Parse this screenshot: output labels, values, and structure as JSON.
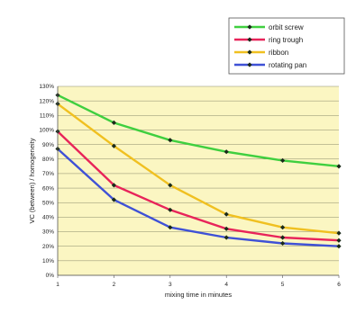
{
  "chart_data": {
    "type": "line",
    "title": "",
    "xlabel": "mixing time in minutes",
    "ylabel": "VC (between) / homogeneity",
    "x": [
      1,
      2,
      3,
      4,
      5,
      6
    ],
    "xlim": [
      1,
      6
    ],
    "ylim": [
      0,
      130
    ],
    "yticks": [
      0,
      10,
      20,
      30,
      40,
      50,
      60,
      70,
      80,
      90,
      100,
      110,
      120,
      130
    ],
    "ytick_suffix": "%",
    "grid": "horizontal",
    "legend_position": "top-right",
    "background": "#fbf6c2",
    "series": [
      {
        "name": "orbit screw",
        "color": "#3fcf3f",
        "values": [
          124,
          105,
          93,
          85,
          79,
          75
        ]
      },
      {
        "name": "ring trough",
        "color": "#e8245a",
        "values": [
          99,
          62,
          45,
          32,
          26,
          24
        ]
      },
      {
        "name": "ribbon",
        "color": "#f0c020",
        "values": [
          118,
          89,
          62,
          42,
          33,
          29
        ]
      },
      {
        "name": "rotating pan",
        "color": "#3f51d6",
        "values": [
          87,
          52,
          33,
          26,
          22,
          20
        ]
      }
    ]
  }
}
